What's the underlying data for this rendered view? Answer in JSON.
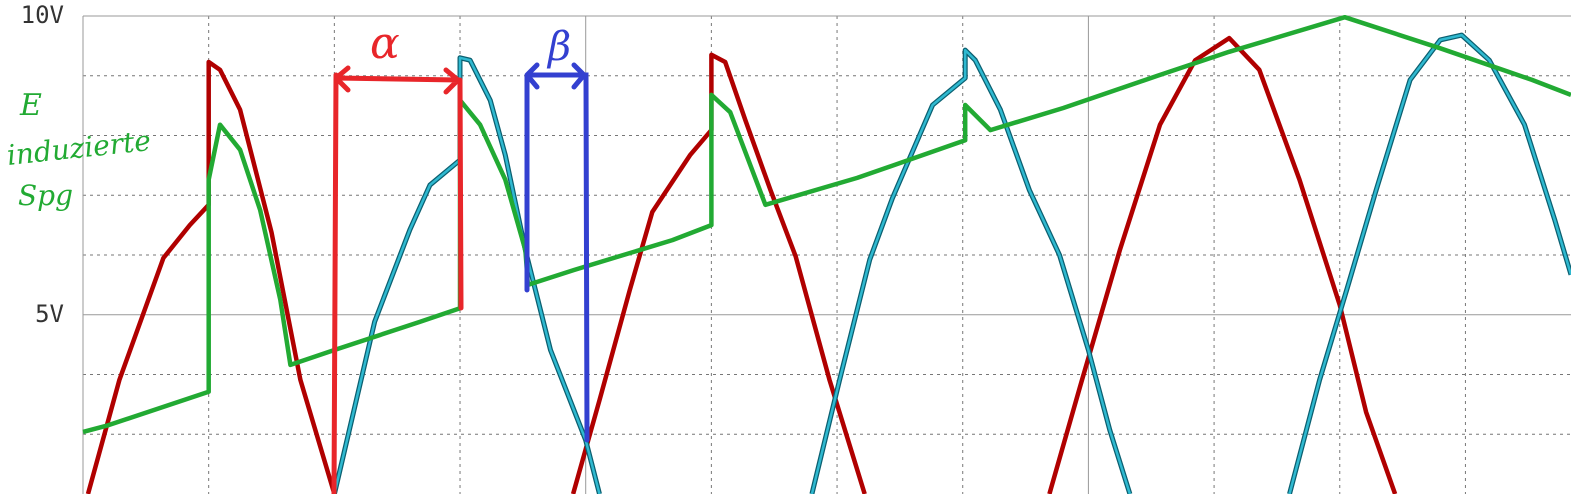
{
  "chart_data": {
    "type": "line",
    "xlim": [
      0,
      11.84
    ],
    "ylim": [
      2,
      10
    ],
    "yticks": [
      {
        "value": 10,
        "label": "10V"
      },
      {
        "value": 5,
        "label": "5V"
      }
    ],
    "ygrid": [
      3,
      4,
      6,
      7,
      8,
      9
    ],
    "xmajor": [
      4,
      8
    ],
    "xgrid": [
      1,
      2,
      3,
      5,
      6,
      7,
      9,
      10,
      11
    ],
    "series": [
      {
        "color": "#b00000",
        "x": [
          0.04,
          0.29,
          0.64,
          0.85,
          1.0,
          1.0,
          1.09,
          1.25,
          1.5,
          1.73,
          2.0,
          null,
          3.9,
          4.11,
          4.35,
          4.53,
          4.83,
          5.0,
          5.0,
          5.11,
          5.27,
          5.47,
          5.67,
          5.94,
          6.22,
          null,
          7.69,
          7.93,
          8.25,
          8.57,
          8.85,
          9.12,
          9.36,
          9.68,
          10.0,
          10.21,
          10.44
        ],
        "values": [
          2.0,
          3.91,
          5.95,
          6.5,
          6.84,
          9.23,
          9.1,
          8.43,
          6.38,
          3.91,
          2.0,
          null,
          2.0,
          3.57,
          5.41,
          6.72,
          7.67,
          8.09,
          9.35,
          9.23,
          8.26,
          7.09,
          5.98,
          3.91,
          2.0,
          null,
          2.0,
          3.77,
          6.08,
          8.18,
          9.26,
          9.63,
          9.1,
          7.26,
          5.16,
          3.37,
          2.0
        ]
      },
      {
        "color": "#2fb9d0",
        "x": [
          2.0,
          2.32,
          2.6,
          2.76,
          3.0,
          3.0,
          3.08,
          3.24,
          3.36,
          3.52,
          3.72,
          4.0,
          4.11,
          null,
          5.8,
          6.02,
          6.26,
          6.44,
          6.76,
          7.02,
          7.02,
          7.1,
          7.3,
          7.53,
          7.77,
          8.0,
          8.17,
          8.33,
          null,
          9.6,
          9.84,
          10.06,
          10.29,
          10.56,
          10.8,
          10.97,
          11.19,
          11.47,
          11.71,
          11.84
        ],
        "values": [
          2.0,
          4.88,
          6.42,
          7.17,
          7.59,
          9.3,
          9.26,
          8.59,
          7.67,
          6.08,
          4.41,
          2.9,
          2.0,
          null,
          2.0,
          3.91,
          5.92,
          6.95,
          8.51,
          8.96,
          9.43,
          9.26,
          8.43,
          7.09,
          6.0,
          4.41,
          3.07,
          2.0,
          null,
          2.0,
          3.91,
          5.45,
          7.09,
          8.93,
          9.6,
          9.68,
          9.26,
          8.18,
          6.59,
          5.67
        ]
      },
      {
        "color": "#22aa33",
        "x": [
          0,
          0.2,
          1.0,
          1.0,
          1.09,
          1.25,
          1.41,
          1.57,
          1.65,
          2.0,
          2.68,
          3.0,
          3.0,
          3.16,
          3.36,
          3.52,
          3.54,
          3.91,
          4.69,
          5.0,
          5.0,
          5.15,
          5.43,
          6.16,
          7.02,
          7.02,
          7.22,
          7.8,
          8.55,
          9.12,
          10.04,
          10.8,
          11.53,
          11.84
        ],
        "values": [
          3.04,
          3.15,
          3.71,
          7.26,
          8.18,
          7.76,
          6.75,
          5.25,
          4.16,
          4.41,
          4.88,
          5.11,
          8.59,
          8.18,
          7.26,
          6.08,
          5.5,
          5.75,
          6.25,
          6.5,
          8.68,
          8.39,
          6.84,
          7.29,
          7.92,
          8.51,
          8.09,
          8.46,
          9.0,
          9.4,
          9.98,
          9.46,
          8.93,
          8.68
        ]
      }
    ],
    "annotations": [
      "E",
      "induzierte",
      "Spg",
      "α",
      "β"
    ]
  }
}
